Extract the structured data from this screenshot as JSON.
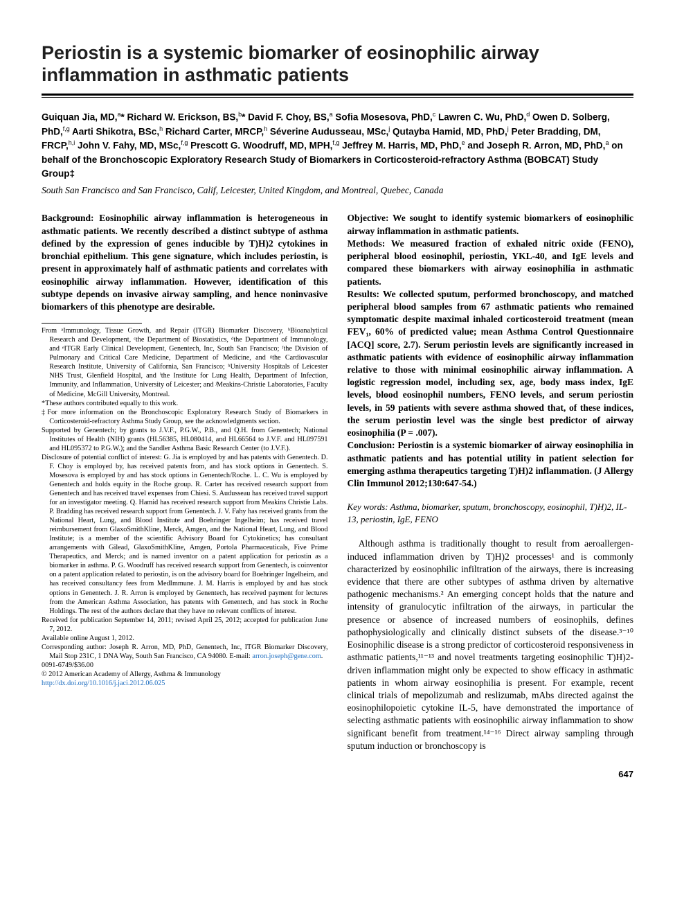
{
  "title": "Periostin is a systemic biomarker of eosinophilic airway inflammation in asthmatic patients",
  "authors_html": "Guiquan Jia, MD,<sup>a</sup>* Richard W. Erickson, BS,<sup>b</sup>* David F. Choy, BS,<sup>a</sup> Sofia Mosesova, PhD,<sup>c</sup> Lawren C. Wu, PhD,<sup>d</sup> Owen D. Solberg, PhD,<sup>f,g</sup> Aarti Shikotra, BSc,<sup>h</sup> Richard Carter, MRCP,<sup>h</sup> Séverine Audusseau, MSc,<sup>j</sup> Qutayba Hamid, MD, PhD,<sup>j</sup> Peter Bradding, DM, FRCP,<sup>h,i</sup> John V. Fahy, MD, MSc,<sup>f,g</sup> Prescott G. Woodruff, MD, MPH,<sup>f,g</sup> Jeffrey M. Harris, MD, PhD,<sup>e</sup> and Joseph R. Arron, MD, PhD,<sup>a</sup> on behalf of the Bronchoscopic Exploratory Research Study of Biomarkers in Corticosteroid-refractory Asthma (BOBCAT) Study Group‡",
  "locations": "South San Francisco and San Francisco, Calif, Leicester, United Kingdom, and Montreal, Quebec, Canada",
  "abstract": {
    "background": "Background: Eosinophilic airway inflammation is heterogeneous in asthmatic patients. We recently described a distinct subtype of asthma defined by the expression of genes inducible by T)H)2 cytokines in bronchial epithelium. This gene signature, which includes periostin, is present in approximately half of asthmatic patients and correlates with eosinophilic airway inflammation. However, identification of this subtype depends on invasive airway sampling, and hence noninvasive biomarkers of this phenotype are desirable.",
    "objective": "Objective: We sought to identify systemic biomarkers of eosinophilic airway inflammation in asthmatic patients.",
    "methods": "Methods: We measured fraction of exhaled nitric oxide (FENO), peripheral blood eosinophil, periostin, YKL-40, and IgE levels and compared these biomarkers with airway eosinophilia in asthmatic patients.",
    "results": "Results: We collected sputum, performed bronchoscopy, and matched peripheral blood samples from 67 asthmatic patients who remained symptomatic despite maximal inhaled corticosteroid treatment (mean FEV₁, 60% of predicted value; mean Asthma Control Questionnaire [ACQ] score, 2.7). Serum periostin levels are significantly increased in asthmatic patients with evidence of eosinophilic airway inflammation relative to those with minimal eosinophilic airway inflammation. A logistic regression model, including sex, age, body mass index, IgE levels, blood eosinophil numbers, FENO levels, and serum periostin levels, in 59 patients with severe asthma showed that, of these indices, the serum periostin level was the single best predictor of airway eosinophilia (P = .007).",
    "conclusion": "Conclusion: Periostin is a systemic biomarker of airway eosinophilia in asthmatic patients and has potential utility in patient selection for emerging asthma therapeutics targeting T)H)2 inflammation. (J Allergy Clin Immunol 2012;130:647-54.)"
  },
  "keywords": "Key words: Asthma, biomarker, sputum, bronchoscopy, eosinophil, T)H)2, IL-13, periostin, IgE, FENO",
  "body_para": "Although asthma is traditionally thought to result from aeroallergen-induced inflammation driven by T)H)2 processes¹ and is commonly characterized by eosinophilic infiltration of the airways, there is increasing evidence that there are other subtypes of asthma driven by alternative pathogenic mechanisms.² An emerging concept holds that the nature and intensity of granulocytic infiltration of the airways, in particular the presence or absence of increased numbers of eosinophils, defines pathophysiologically and clinically distinct subsets of the disease.³⁻¹⁰ Eosinophilic disease is a strong predictor of corticosteroid responsiveness in asthmatic patients,¹¹⁻¹³ and novel treatments targeting eosinophilic T)H)2-driven inflammation might only be expected to show efficacy in asthmatic patients in whom airway eosinophilia is present. For example, recent clinical trials of mepolizumab and reslizumab, mAbs directed against the eosinophilopoietic cytokine IL-5, have demonstrated the importance of selecting asthmatic patients with eosinophilic airway inflammation to show significant benefit from treatment.¹⁴⁻¹⁶ Direct airway sampling through sputum induction or bronchoscopy is",
  "footnotes": [
    "From ᵃImmunology, Tissue Growth, and Repair (ITGR) Biomarker Discovery, ᵇBioanalytical Research and Development, ᶜthe Department of Biostatistics, ᵈthe Department of Immunology, and ᵉITGR Early Clinical Development, Genentech, Inc, South San Francisco; ᶠthe Division of Pulmonary and Critical Care Medicine, Department of Medicine, and ᵍthe Cardiovascular Research Institute, University of California, San Francisco; ʰUniversity Hospitals of Leicester NHS Trust, Glenfield Hospital, and ⁱthe Institute for Lung Health, Department of Infection, Immunity, and Inflammation, University of Leicester; and ʲMeakins-Christie Laboratories, Faculty of Medicine, McGill University, Montreal.",
    "*These authors contributed equally to this work.",
    "‡For more information on the Bronchoscopic Exploratory Research Study of Biomarkers in Corticosteroid-refractory Asthma Study Group, see the acknowledgments section.",
    "Supported by Genentech; by grants to J.V.F., P.G.W., P.B., and Q.H. from Genentech; National Institutes of Health (NIH) grants (HL56385, HL080414, and HL66564 to J.V.F. and HL097591 and HL095372 to P.G.W.); and the Sandler Asthma Basic Research Center (to J.V.F.).",
    "Disclosure of potential conflict of interest: G. Jia is employed by and has patents with Genentech. D. F. Choy is employed by, has received patents from, and has stock options in Genentech. S. Mosesova is employed by and has stock options in Genentech/Roche. L. C. Wu is employed by Genentech and holds equity in the Roche group. R. Carter has received research support from Genentech and has received travel expenses from Chiesi. S. Audusseau has received travel support for an investigator meeting. Q. Hamid has received research support from Meakins Christie Labs. P. Bradding has received research support from Genentech. J. V. Fahy has received grants from the National Heart, Lung, and Blood Institute and Boehringer Ingelheim; has received travel reimbursement from GlaxoSmithKline, Merck, Amgen, and the National Heart, Lung, and Blood Institute; is a member of the scientific Advisory Board for Cytokinetics; has consultant arrangements with Gilead, GlaxoSmithKline, Amgen, Portola Pharmaceuticals, Five Prime Therapeutics, and Merck; and is named inventor on a patent application for periostin as a biomarker in asthma. P. G. Woodruff has received research support from Genentech, is coinventor on a patent application related to periostin, is on the advisory board for Boehringer Ingelheim, and has received consultancy fees from MedImmune. J. M. Harris is employed by and has stock options in Genentech. J. R. Arron is employed by Genentech, has received payment for lectures from the American Asthma Association, has patents with Genentech, and has stock in Roche Holdings. The rest of the authors declare that they have no relevant conflicts of interest.",
    "Received for publication September 14, 2011; revised April 25, 2012; accepted for publication June 7, 2012.",
    "Available online August 1, 2012.",
    "Corresponding author: Joseph R. Arron, MD, PhD, Genentech, Inc, ITGR Biomarker Discovery, Mail Stop 231C, 1 DNA Way, South San Francisco, CA 94080. E-mail: ",
    "0091-6749/$36.00",
    "© 2012 American Academy of Allergy, Asthma & Immunology"
  ],
  "email_link": "arron.joseph@gene.com",
  "doi_link": "http://dx.doi.org/10.1016/j.jaci.2012.06.025",
  "page_number": "647"
}
